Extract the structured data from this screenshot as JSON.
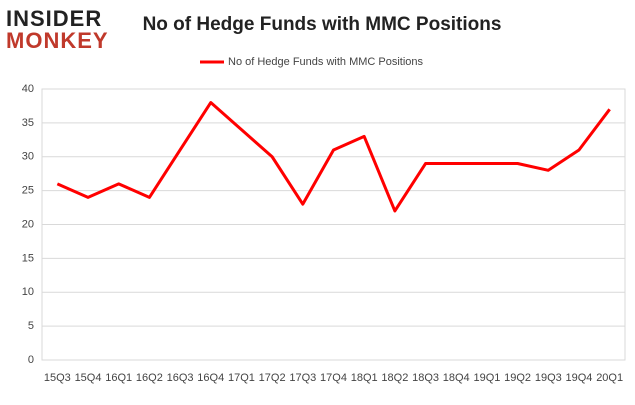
{
  "logo": {
    "line1": "INSIDER",
    "line2": "MONKEY"
  },
  "chart_data": {
    "type": "line",
    "title": "No of Hedge Funds with MMC Positions",
    "categories": [
      "15Q3",
      "15Q4",
      "16Q1",
      "16Q2",
      "16Q3",
      "16Q4",
      "17Q1",
      "17Q2",
      "17Q3",
      "17Q4",
      "18Q1",
      "18Q2",
      "18Q3",
      "18Q4",
      "19Q1",
      "19Q2",
      "19Q3",
      "19Q4",
      "20Q1"
    ],
    "series": [
      {
        "name": "No of Hedge Funds with MMC Positions",
        "color": "#ff0000",
        "values": [
          26,
          24,
          26,
          24,
          31,
          38,
          34,
          30,
          23,
          31,
          33,
          22,
          29,
          29,
          29,
          29,
          28,
          31,
          37
        ]
      }
    ],
    "ylim": [
      0,
      40
    ],
    "yticks": [
      0,
      5,
      10,
      15,
      20,
      25,
      30,
      35,
      40
    ],
    "grid": true,
    "legend": "top"
  }
}
